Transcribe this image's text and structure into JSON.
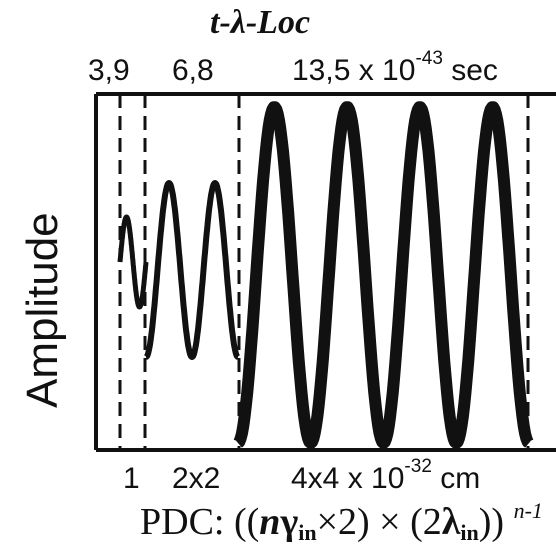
{
  "title": "t-λ-Loc",
  "top_labels": {
    "t1": "3,9",
    "t2": "6,8",
    "t3_base": "13,5 x 10",
    "t3_exp": "-43",
    "t3_unit": "sec"
  },
  "bottom_labels": {
    "b1": "1",
    "b2": "2x2",
    "b3_base": "4x4 x 10",
    "b3_exp": "-32",
    "b3_unit": "cm"
  },
  "ylabel": "Amplitude",
  "formula": {
    "prefix": "PDC: ((",
    "n": "n",
    "gamma": "γ",
    "gamma_sub": "in",
    "mid": "×2) × (2",
    "lambda": "λ",
    "lambda_sub": "in",
    "close": "))",
    "exp": "n-1"
  },
  "colors": {
    "ink": "#111111",
    "background": "#ffffff"
  }
}
